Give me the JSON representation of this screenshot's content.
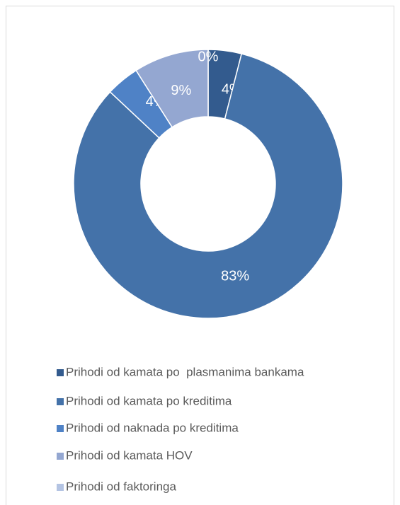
{
  "chart_data": {
    "type": "donut",
    "categories": [
      "Prihodi od kamata po  plasmanima bankama",
      "Prihodi od kamata po kreditima",
      "Prihodi od naknada po kreditima",
      "Prihodi od kamata HOV",
      "Prihodi od faktoringa"
    ],
    "values": [
      4,
      83,
      4,
      9,
      0
    ],
    "value_labels": [
      "4%",
      "83%",
      "4%",
      "9%",
      "0%"
    ],
    "colors": [
      "#335b8e",
      "#4472a9",
      "#4f82c6",
      "#94a7d1",
      "#b4c4e3"
    ],
    "legend": "bottom"
  }
}
